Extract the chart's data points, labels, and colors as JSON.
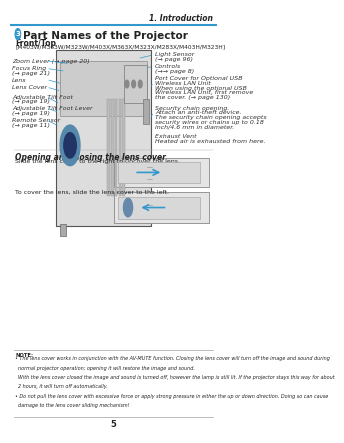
{
  "bg_color": "#ffffff",
  "page_num": "5",
  "header_text": "1. Introduction",
  "header_line_color": "#3399cc",
  "title_text": "Part Names of the Projector",
  "subtitle1": "Front/Top",
  "subtitle2": "[M403W/M363W/M323W/M403X/M363X/M323X/M283X/M403H/M323H]",
  "section2_title": "Opening and closing the lens cover",
  "section2_text1": "Slide the lens cover to the right to uncover the lens.",
  "section2_text2": "To cover the lens, slide the lens cover to the left.",
  "note_title": "NOTE:",
  "note_line1": "• The lens cover works in conjunction with the AV-MUTE function. Closing the lens cover will turn off the image and sound during",
  "note_line2": "  normal projector operation; opening it will restore the image and sound.",
  "note_line3": "  With the lens cover closed the image and sound is turned off, however the lamp is still lit. If the projector stays this way for about",
  "note_line4": "  2 hours, it will turn off automatically.",
  "note_line5": "• Do not pull the lens cover with excessive force or apply strong pressure in either the up or down direction. Doing so can cause",
  "note_line6": "  damage to the lens cover sliding mechanism!",
  "text_color": "#222222",
  "blue_color": "#3399cc",
  "label_fontsize": 4.5,
  "small_fontsize": 3.8
}
